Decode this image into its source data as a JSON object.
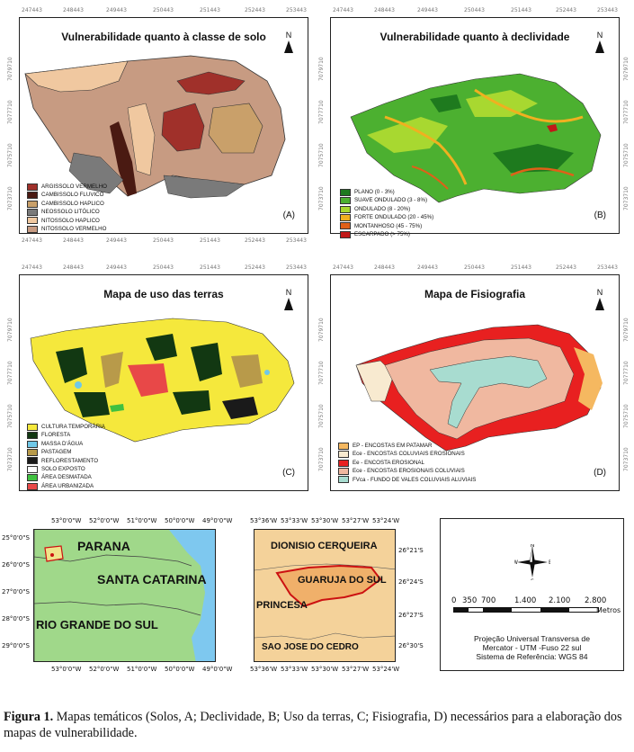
{
  "coords": {
    "x_top": [
      "247443",
      "248443",
      "249443",
      "250443",
      "251443",
      "252443",
      "253443"
    ],
    "y_left": [
      "7079710",
      "7077710",
      "7075710",
      "7073710",
      "7071710",
      "7069710"
    ]
  },
  "panels": {
    "A": {
      "title": "Vulnerabilidade quanto à classe de solo",
      "letter": "(A)",
      "legend": [
        {
          "label": "ARGISSOLO VERMELHO",
          "color": "#a0302a"
        },
        {
          "label": "CAMBISSOLO FLUVICO",
          "color": "#4a1a12"
        },
        {
          "label": "CAMBISSOLO HAPLICO",
          "color": "#c9a06a"
        },
        {
          "label": "NEOSSOLO LITÓLICO",
          "color": "#7a7a7a"
        },
        {
          "label": "NITOSSOLO HAPLICO",
          "color": "#f0c8a0"
        },
        {
          "label": "NITOSSOLO VERMELHO",
          "color": "#c79b82"
        }
      ]
    },
    "B": {
      "title": "Vulnerabilidade quanto à declividade",
      "letter": "(B)",
      "legend": [
        {
          "label": "PLANO (0 - 3%)",
          "color": "#1e7a1e"
        },
        {
          "label": "SUAVE ONDULADO (3 - 8%)",
          "color": "#4cb030"
        },
        {
          "label": "ONDULADO (8 - 20%)",
          "color": "#a8d830"
        },
        {
          "label": "FORTE ONDULADO (20 - 45%)",
          "color": "#f0b020"
        },
        {
          "label": "MONTANHOSO (45 - 75%)",
          "color": "#e06018"
        },
        {
          "label": "ESCARPADO (> 75%)",
          "color": "#c01818"
        }
      ]
    },
    "C": {
      "title": "Mapa de uso das terras",
      "letter": "(C)",
      "legend": [
        {
          "label": "CULTURA TEMPORÁRIA",
          "color": "#f5e83c"
        },
        {
          "label": "FLORESTA",
          "color": "#123812"
        },
        {
          "label": "MASSA D'ÁGUA",
          "color": "#70c8e8"
        },
        {
          "label": "PASTAGEM",
          "color": "#b89a4a"
        },
        {
          "label": "REFLORESTAMENTO",
          "color": "#1a1a1a"
        },
        {
          "label": "SOLO EXPOSTO",
          "color": "#ffffff"
        },
        {
          "label": "ÁREA DESMATADA",
          "color": "#40c040"
        },
        {
          "label": "ÁREA URBANIZADA",
          "color": "#e84848"
        }
      ]
    },
    "D": {
      "title": "Mapa de Fisiografia",
      "letter": "(D)",
      "legend": [
        {
          "label": "EP - ENCOSTAS EM PATAMAR",
          "color": "#f5b860"
        },
        {
          "label": "Ece - ENCOSTAS COLUVIAIS EROSIONAIS",
          "color": "#f8ead0"
        },
        {
          "label": "Ee - ENCOSTA EROSIONAL",
          "color": "#e82020"
        },
        {
          "label": "Ece - ENCOSTAS EROSIONAIS COLUVIAIS",
          "color": "#f0b8a0"
        },
        {
          "label": "FVca - FUNDO DE VALES COLUVIAIS ALUVIAIS",
          "color": "#a8dcd0"
        }
      ]
    }
  },
  "locator_left": {
    "top_ticks": [
      "53°0'0\"W",
      "52°0'0\"W",
      "51°0'0\"W",
      "50°0'0\"W",
      "49°0'0\"W"
    ],
    "left_ticks": [
      "25°0'0\"S",
      "26°0'0\"S",
      "27°0'0\"S",
      "28°0'0\"S",
      "29°0'0\"S"
    ],
    "labels": {
      "pr": "PARANA",
      "sc": "SANTA CATARINA",
      "rs": "RIO GRANDE DO SUL"
    }
  },
  "locator_mid": {
    "top_ticks": [
      "53°36'W",
      "53°33'W",
      "53°30'W",
      "53°27'W",
      "53°24'W"
    ],
    "right_ticks": [
      "26°21'S",
      "26°24'S",
      "26°27'S",
      "26°30'S"
    ],
    "labels": {
      "dc": "DIONISIO CERQUEIRA",
      "gs": "GUARUJA DO SUL",
      "pr": "PRINCESA",
      "sjc": "SAO JOSE DO CEDRO"
    }
  },
  "scale_panel": {
    "ticks": [
      "0",
      "350",
      "700",
      "1.400",
      "2.100",
      "2.800"
    ],
    "unit": "Metros",
    "proj_line1": "Projeção Universal Transversa de",
    "proj_line2": "Mercator - UTM -Fuso 22 sul",
    "proj_line3": "Sistema de Referência: WGS 84"
  },
  "north_label": "N",
  "caption": {
    "bold": "Figura 1.",
    "text": " Mapas temáticos (Solos, A; Declividade, B; Uso da terras, C; Fisiografia, D) necessários para a elaboração dos mapas de vulnerabilidade."
  },
  "colors": {
    "green_state": "#a0d88a",
    "ocean": "#7ec8ef",
    "region_mid": "#f4d29a",
    "municipality": "#f0b06a",
    "border_red": "#cc1111"
  }
}
